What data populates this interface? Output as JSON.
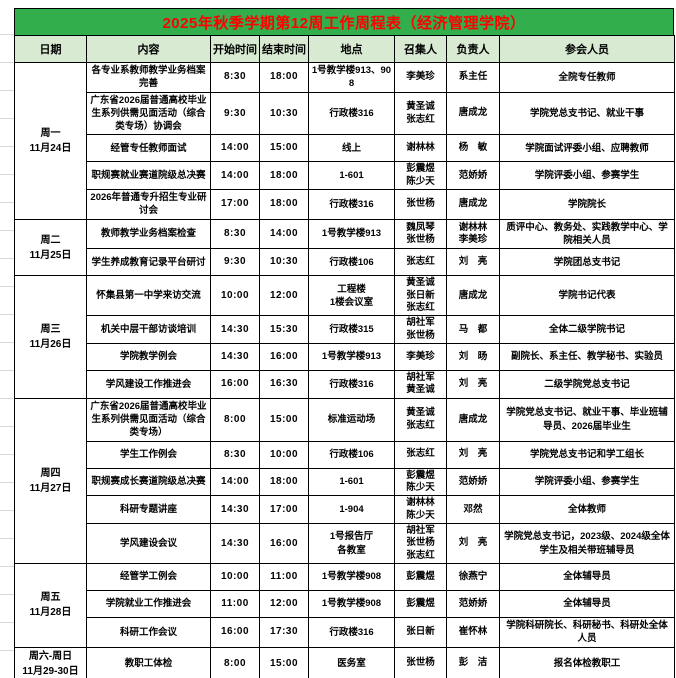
{
  "title": "2025年秋季学期第12周工作周程表（经济管理学院）",
  "colors": {
    "title_bg": "#33AE4D",
    "title_text": "#FF0000",
    "header_bg": "#D9EAD3",
    "border": "#000000"
  },
  "columns": [
    "日期",
    "内容",
    "开始时间",
    "结束时间",
    "地点",
    "召集人",
    "负责人",
    "参会人员"
  ],
  "days": [
    {
      "label": "周一\n11月24日",
      "events": [
        {
          "content": "各专业系教师教学业务档案完善",
          "start": "8:30",
          "end": "18:00",
          "location": "1号教学楼913、908",
          "convener": "李美珍",
          "owner": "系主任",
          "participants": "全院专任教师"
        },
        {
          "content": "广东省2026届普通高校毕业生系列供需见面活动（综合类专场）协调会",
          "start": "9:30",
          "end": "10:30",
          "location": "行政楼316",
          "convener": "黄圣诚\n张志红",
          "owner": "唐成龙",
          "participants": "学院党总支书记、就业干事"
        },
        {
          "content": "经管专任教师面试",
          "start": "14:00",
          "end": "15:00",
          "location": "线上",
          "convener": "谢林林",
          "owner": "杨　敏",
          "participants": "学院面试评委小组、应聘教师"
        },
        {
          "content": "职规赛就业赛道院级总决赛",
          "start": "14:00",
          "end": "18:00",
          "location": "1-601",
          "convener": "彭震煜\n陈少天",
          "owner": "范娇娇",
          "participants": "学院评委小组、参赛学生"
        },
        {
          "content": "2026年普通专升招生专业研讨会",
          "start": "17:00",
          "end": "18:00",
          "location": "行政楼316",
          "convener": "张世杨",
          "owner": "唐成龙",
          "participants": "学院院长"
        }
      ]
    },
    {
      "label": "周二\n11月25日",
      "events": [
        {
          "content": "教师教学业务档案检查",
          "start": "8:30",
          "end": "14:00",
          "location": "1号教学楼913",
          "convener": "魏凤琴\n张世杨",
          "owner": "谢林林\n李美珍",
          "participants": "质评中心、教务处、实践教学中心、学院相关人员"
        },
        {
          "content": "学生养成教育记录平台研讨",
          "start": "9:30",
          "end": "10:30",
          "location": "行政楼106",
          "convener": "张志红",
          "owner": "刘　亮",
          "participants": "学院团总支书记"
        }
      ]
    },
    {
      "label": "周三\n11月26日",
      "events": [
        {
          "content": "怀集县第一中学来访交流",
          "start": "10:00",
          "end": "12:00",
          "location": "工程楼\n1楼会议室",
          "convener": "黄圣诚\n张日新\n张志红",
          "owner": "唐成龙",
          "participants": "学院书记代表"
        },
        {
          "content": "机关中层干部访谈培训",
          "start": "14:30",
          "end": "15:30",
          "location": "行政楼315",
          "convener": "胡社军\n张世杨",
          "owner": "马　都",
          "participants": "全体二级学院书记"
        },
        {
          "content": "学院教学例会",
          "start": "14:30",
          "end": "16:00",
          "location": "1号教学楼913",
          "convener": "李美珍",
          "owner": "刘　旸",
          "participants": "副院长、系主任、教学秘书、实验员"
        },
        {
          "content": "学风建设工作推进会",
          "start": "16:00",
          "end": "16:30",
          "location": "行政楼316",
          "convener": "胡社军\n黄圣诚",
          "owner": "刘　亮",
          "participants": "二级学院党总支书记"
        }
      ]
    },
    {
      "label": "周四\n11月27日",
      "events": [
        {
          "content": "广东省2026届普通高校毕业生系列供需见面活动（综合类专场）",
          "start": "8:00",
          "end": "15:00",
          "location": "标准运动场",
          "convener": "黄圣诚\n张志红",
          "owner": "唐成龙",
          "participants": "学院党总支书记、就业干事、毕业班辅导员、2026届毕业生"
        },
        {
          "content": "学生工作例会",
          "start": "8:30",
          "end": "10:00",
          "location": "行政楼106",
          "convener": "张志红",
          "owner": "刘　亮",
          "participants": "学院党总支书记和学工组长"
        },
        {
          "content": "职规赛成长赛道院级总决赛",
          "start": "14:00",
          "end": "18:00",
          "location": "1-601",
          "convener": "彭震煜\n陈少天",
          "owner": "范娇娇",
          "participants": "学院评委小组、参赛学生"
        },
        {
          "content": "科研专题讲座",
          "start": "14:30",
          "end": "17:00",
          "location": "1-904",
          "convener": "谢林林\n陈少天",
          "owner": "邓然",
          "participants": "全体教师"
        },
        {
          "content": "学风建设会议",
          "start": "14:30",
          "end": "16:00",
          "location": "1号报告厅\n各教室",
          "convener": "胡社军\n张世杨\n张志红",
          "owner": "刘　亮",
          "participants": "学院党总支书记，2023级、2024级全体学生及相关带班辅导员"
        }
      ]
    },
    {
      "label": "周五\n11月28日",
      "events": [
        {
          "content": "经管学工例会",
          "start": "10:00",
          "end": "11:00",
          "location": "1号教学楼908",
          "convener": "彭震煜",
          "owner": "徐燕宁",
          "participants": "全体辅导员"
        },
        {
          "content": "学院就业工作推进会",
          "start": "11:00",
          "end": "12:00",
          "location": "1号教学楼908",
          "convener": "彭震煜",
          "owner": "范娇娇",
          "participants": "全体辅导员"
        },
        {
          "content": "科研工作会议",
          "start": "16:00",
          "end": "17:30",
          "location": "行政楼316",
          "convener": "张日新",
          "owner": "崔怀林",
          "participants": "学院科研院长、科研秘书、科研处全体人员"
        }
      ]
    },
    {
      "label": "周六-周日\n11月29-30日",
      "events": [
        {
          "content": "教职工体检",
          "start": "8:00",
          "end": "15:00",
          "location": "医务室",
          "convener": "张世杨",
          "owner": "彭　洁",
          "participants": "报名体检教职工"
        }
      ]
    }
  ]
}
